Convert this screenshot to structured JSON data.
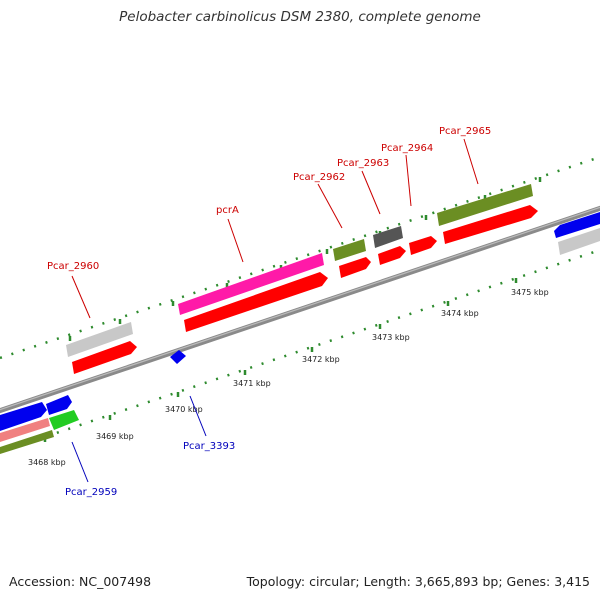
{
  "title": "Pelobacter carbinolicus DSM 2380, complete genome",
  "footer": {
    "accession": "Accession: NC_007498",
    "summary": "Topology: circular; Length: 3,665,893 bp; Genes: 3,415"
  },
  "scale_labels": [
    "3468 kbp",
    "3469 kbp",
    "3470 kbp",
    "3471 kbp",
    "3472 kbp",
    "3473 kbp",
    "3474 kbp",
    "3475 kbp"
  ],
  "gene_labels": [
    "Pcar_2960",
    "pcrA",
    "Pcar_2962",
    "Pcar_2963",
    "Pcar_2964",
    "Pcar_2965",
    "Pcar_3393",
    "Pcar_2959"
  ],
  "colors": {
    "cds": "#ff0000",
    "rna_gray": "#c8c8c8",
    "pink": "#ff1aa8",
    "olive": "#6b8e23",
    "dark_gray": "#555555",
    "blue": "#0000ee",
    "green": "#22cc22",
    "salmon": "#f08080",
    "tick_green": "#2e8b2e",
    "label_red": "#cc0000",
    "label_blue": "#0000bb"
  }
}
